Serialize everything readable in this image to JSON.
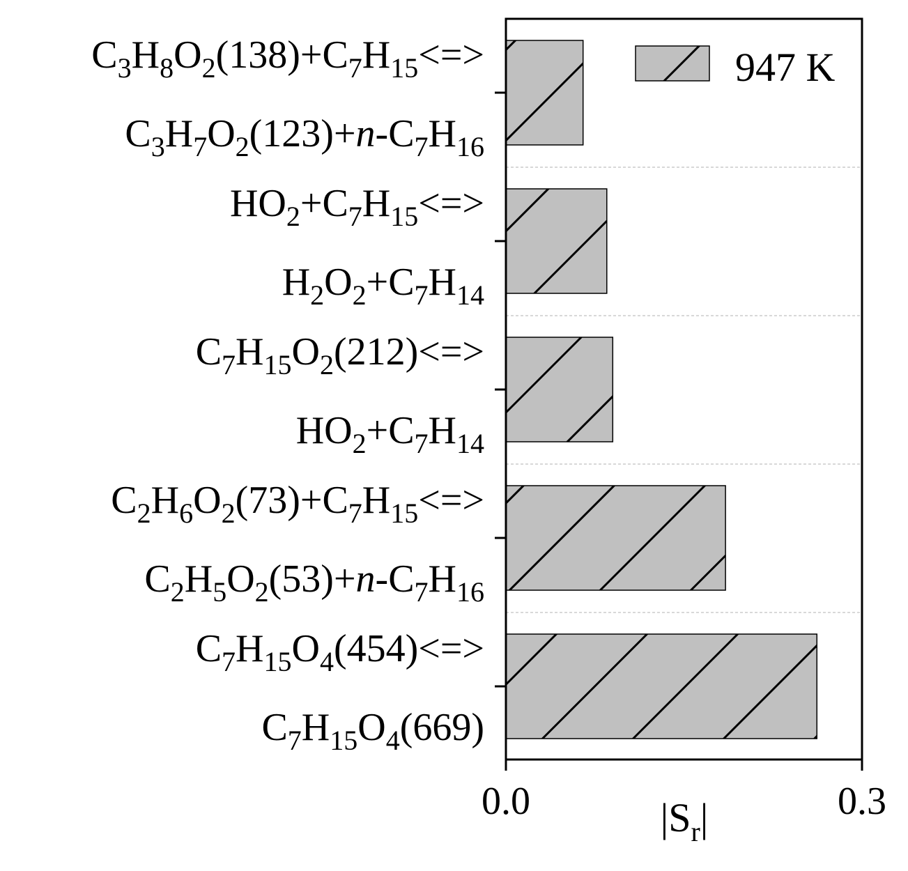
{
  "chart_data": {
    "type": "bar",
    "orientation": "horizontal",
    "categories": [
      {
        "line1": [
          {
            "t": "C"
          },
          {
            "t": "3",
            "s": "sub"
          },
          {
            "t": "H"
          },
          {
            "t": "8",
            "s": "sub"
          },
          {
            "t": "O"
          },
          {
            "t": "2",
            "s": "sub"
          },
          {
            "t": "(138)+C"
          },
          {
            "t": "7",
            "s": "sub"
          },
          {
            "t": "H"
          },
          {
            "t": "15",
            "s": "sub"
          },
          {
            "t": "<=>"
          }
        ],
        "line2": [
          {
            "t": "C"
          },
          {
            "t": "3",
            "s": "sub"
          },
          {
            "t": "H"
          },
          {
            "t": "7",
            "s": "sub"
          },
          {
            "t": "O"
          },
          {
            "t": "2",
            "s": "sub"
          },
          {
            "t": "(123)+"
          },
          {
            "t": "n",
            "s": "it"
          },
          {
            "t": "-C"
          },
          {
            "t": "7",
            "s": "sub"
          },
          {
            "t": "H"
          },
          {
            "t": "16",
            "s": "sub"
          }
        ]
      },
      {
        "line1": [
          {
            "t": "HO"
          },
          {
            "t": "2",
            "s": "sub"
          },
          {
            "t": "+C"
          },
          {
            "t": "7",
            "s": "sub"
          },
          {
            "t": "H"
          },
          {
            "t": "15",
            "s": "sub"
          },
          {
            "t": "<=>"
          }
        ],
        "line2": [
          {
            "t": "H"
          },
          {
            "t": "2",
            "s": "sub"
          },
          {
            "t": "O"
          },
          {
            "t": "2",
            "s": "sub"
          },
          {
            "t": "+C"
          },
          {
            "t": "7",
            "s": "sub"
          },
          {
            "t": "H"
          },
          {
            "t": "14",
            "s": "sub"
          }
        ]
      },
      {
        "line1": [
          {
            "t": "C"
          },
          {
            "t": "7",
            "s": "sub"
          },
          {
            "t": "H"
          },
          {
            "t": "15",
            "s": "sub"
          },
          {
            "t": "O"
          },
          {
            "t": "2",
            "s": "sub"
          },
          {
            "t": "(212)<=>"
          }
        ],
        "line2": [
          {
            "t": "HO"
          },
          {
            "t": "2",
            "s": "sub"
          },
          {
            "t": "+C"
          },
          {
            "t": "7",
            "s": "sub"
          },
          {
            "t": "H"
          },
          {
            "t": "14",
            "s": "sub"
          }
        ]
      },
      {
        "line1": [
          {
            "t": "C"
          },
          {
            "t": "2",
            "s": "sub"
          },
          {
            "t": "H"
          },
          {
            "t": "6",
            "s": "sub"
          },
          {
            "t": "O"
          },
          {
            "t": "2",
            "s": "sub"
          },
          {
            "t": "(73)+C"
          },
          {
            "t": "7",
            "s": "sub"
          },
          {
            "t": "H"
          },
          {
            "t": "15",
            "s": "sub"
          },
          {
            "t": "<=>"
          }
        ],
        "line2": [
          {
            "t": "C"
          },
          {
            "t": "2",
            "s": "sub"
          },
          {
            "t": "H"
          },
          {
            "t": "5",
            "s": "sub"
          },
          {
            "t": "O"
          },
          {
            "t": "2",
            "s": "sub"
          },
          {
            "t": "(53)+"
          },
          {
            "t": "n",
            "s": "it"
          },
          {
            "t": "-C"
          },
          {
            "t": "7",
            "s": "sub"
          },
          {
            "t": "H"
          },
          {
            "t": "16",
            "s": "sub"
          }
        ]
      },
      {
        "line1": [
          {
            "t": "C"
          },
          {
            "t": "7",
            "s": "sub"
          },
          {
            "t": "H"
          },
          {
            "t": "15",
            "s": "sub"
          },
          {
            "t": "O"
          },
          {
            "t": "4",
            "s": "sub"
          },
          {
            "t": "(454)<=>"
          }
        ],
        "line2": [
          {
            "t": "C"
          },
          {
            "t": "7",
            "s": "sub"
          },
          {
            "t": "H"
          },
          {
            "t": "15",
            "s": "sub"
          },
          {
            "t": "O"
          },
          {
            "t": "4",
            "s": "sub"
          },
          {
            "t": "(669)"
          }
        ]
      }
    ],
    "series": [
      {
        "name": "947 K",
        "values": [
          0.065,
          0.085,
          0.09,
          0.185,
          0.262
        ]
      }
    ],
    "xlabel": {
      "main": "|S",
      "sub": "r",
      "end": "|"
    },
    "xlim": [
      0.0,
      0.3
    ],
    "xticks": [
      "0.0",
      "0.3"
    ],
    "legend": {
      "position": "top-right",
      "label": "947 K"
    },
    "bar_fill": "#c0c0c0",
    "bar_hatch": "diagonal (\\\\)",
    "bar_edge": "#000000",
    "grid": "dashed horizontal separators between categories"
  }
}
